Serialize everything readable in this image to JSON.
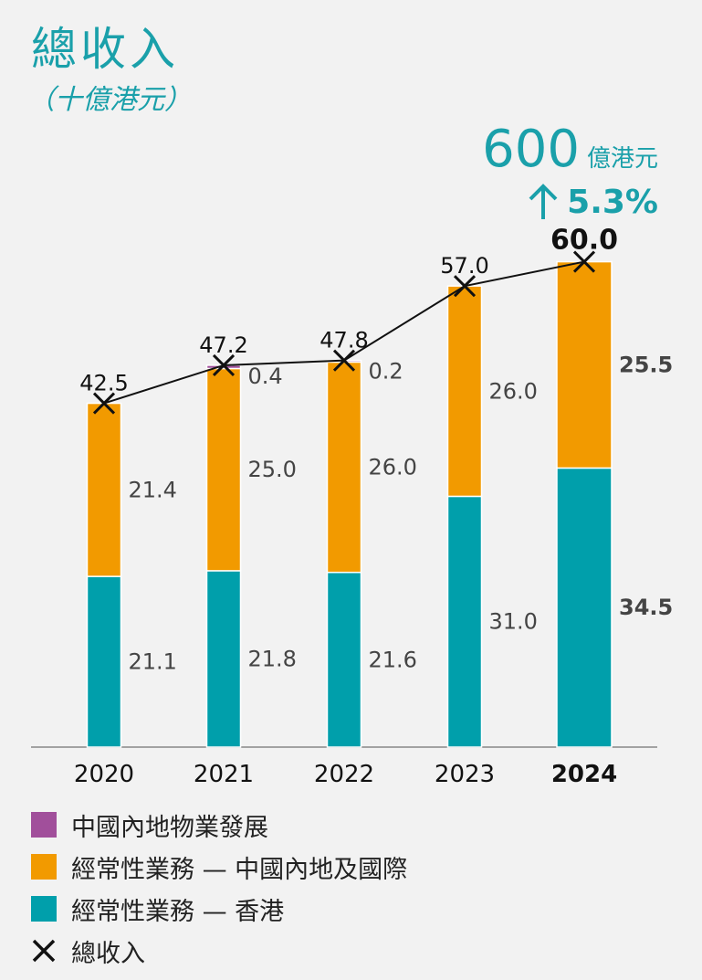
{
  "header": {
    "title": "總收入",
    "unit": "（十億港元）"
  },
  "headline": {
    "value": "600",
    "unit": "億港元",
    "growth": "5.3%"
  },
  "colors": {
    "teal": "#009fab",
    "orange": "#f29a00",
    "purple": "#a14f9b",
    "title_teal": "#1aa0aa"
  },
  "chart_data": {
    "type": "bar",
    "stacked": true,
    "title": "總收入",
    "ylabel": "十億港元",
    "categories": [
      "2020",
      "2021",
      "2022",
      "2023",
      "2024"
    ],
    "ylim": [
      0,
      63
    ],
    "series": [
      {
        "name": "經常性業務 — 香港",
        "color": "#009fab",
        "values": [
          21.1,
          21.8,
          21.6,
          31.0,
          34.5
        ],
        "labels": [
          "21.1",
          "21.8",
          "21.6",
          "31.0",
          "34.5"
        ]
      },
      {
        "name": "經常性業務 — 中國內地及國際",
        "color": "#f29a00",
        "values": [
          21.4,
          25.0,
          26.0,
          26.0,
          25.5
        ],
        "labels": [
          "21.4",
          "25.0",
          "26.0",
          "26.0",
          "25.5"
        ]
      },
      {
        "name": "中國內地物業發展",
        "color": "#a14f9b",
        "values": [
          0,
          0.4,
          0.2,
          0,
          0
        ],
        "labels": [
          "",
          "0.4",
          "0.2",
          "",
          ""
        ]
      }
    ],
    "total": {
      "name": "總收入",
      "values": [
        42.5,
        47.2,
        47.8,
        57.0,
        60.0
      ],
      "labels": [
        "42.5",
        "47.2",
        "47.8",
        "57.0",
        "60.0"
      ]
    },
    "highlight_category": "2024"
  },
  "legend": [
    {
      "label": "中國內地物業發展",
      "color": "#a14f9b",
      "kind": "swatch"
    },
    {
      "label": "經常性業務 — 中國內地及國際",
      "color": "#f29a00",
      "kind": "swatch"
    },
    {
      "label": "經常性業務 — 香港",
      "color": "#009fab",
      "kind": "swatch"
    },
    {
      "label": "總收入",
      "color": "#111111",
      "kind": "cross"
    }
  ]
}
